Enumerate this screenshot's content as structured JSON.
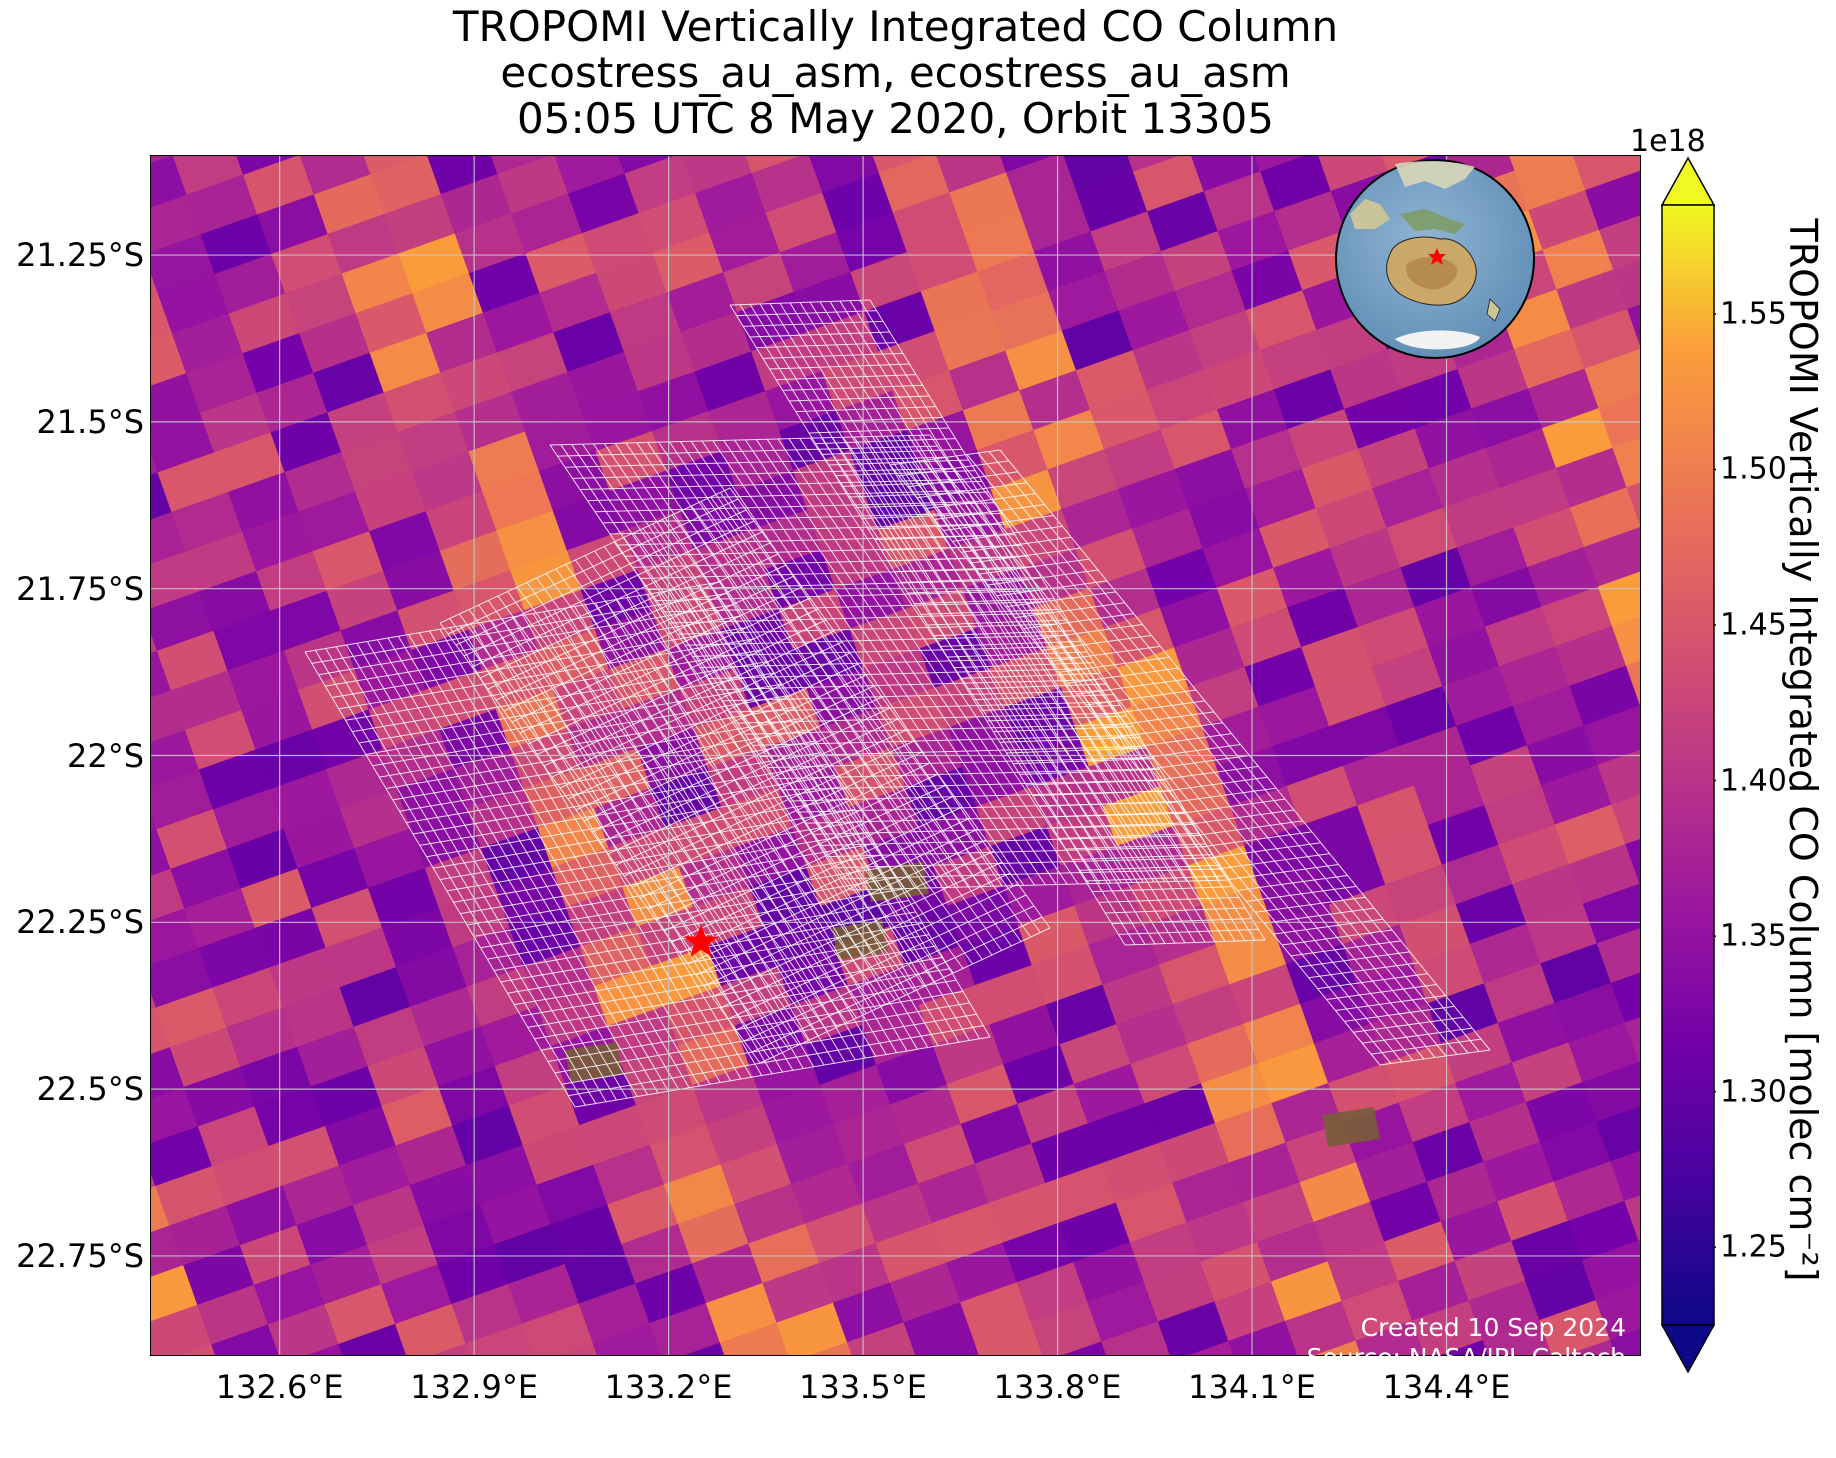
{
  "title": {
    "line1": "TROPOMI Vertically Integrated CO Column",
    "line2": "ecostress_au_asm, ecostress_au_asm",
    "line3": "05:05 UTC 8 May 2020, Orbit 13305"
  },
  "map": {
    "lat_ticks": [
      "21.25°S",
      "21.5°S",
      "21.75°S",
      "22°S",
      "22.25°S",
      "22.5°S",
      "22.75°S"
    ],
    "lat_values": [
      -21.25,
      -21.5,
      -21.75,
      -22.0,
      -22.25,
      -22.5,
      -22.75
    ],
    "lon_ticks": [
      "132.6°E",
      "132.9°E",
      "133.2°E",
      "133.5°E",
      "133.8°E",
      "134.1°E",
      "134.4°E"
    ],
    "lon_values": [
      132.6,
      132.9,
      133.2,
      133.5,
      133.8,
      134.1,
      134.4
    ],
    "extent": {
      "lon_min": 132.4,
      "lon_max": 134.7,
      "lat_min": -22.9,
      "lat_max": -21.1
    },
    "site_marker": {
      "lon": 133.25,
      "lat": -22.28,
      "color": "#ff0000",
      "icon": "star"
    },
    "gridlines": true,
    "colormap": "plasma"
  },
  "colorbar": {
    "exponent": "1e18",
    "label": "TROPOMI Vertically Integrated CO Column [molec cm⁻²]",
    "ticks": [
      "1.25",
      "1.30",
      "1.35",
      "1.40",
      "1.45",
      "1.50",
      "1.55"
    ],
    "tick_values": [
      1.25,
      1.3,
      1.35,
      1.4,
      1.45,
      1.5,
      1.55
    ],
    "vmin": 1.225,
    "vmax": 1.585,
    "extend": "both"
  },
  "inset_globe": {
    "icon": "globe-icon",
    "marker_color": "#ff0000"
  },
  "credits": {
    "created": "Created 10 Sep 2024",
    "source": "Source: NASA/JPL-Caltech"
  }
}
